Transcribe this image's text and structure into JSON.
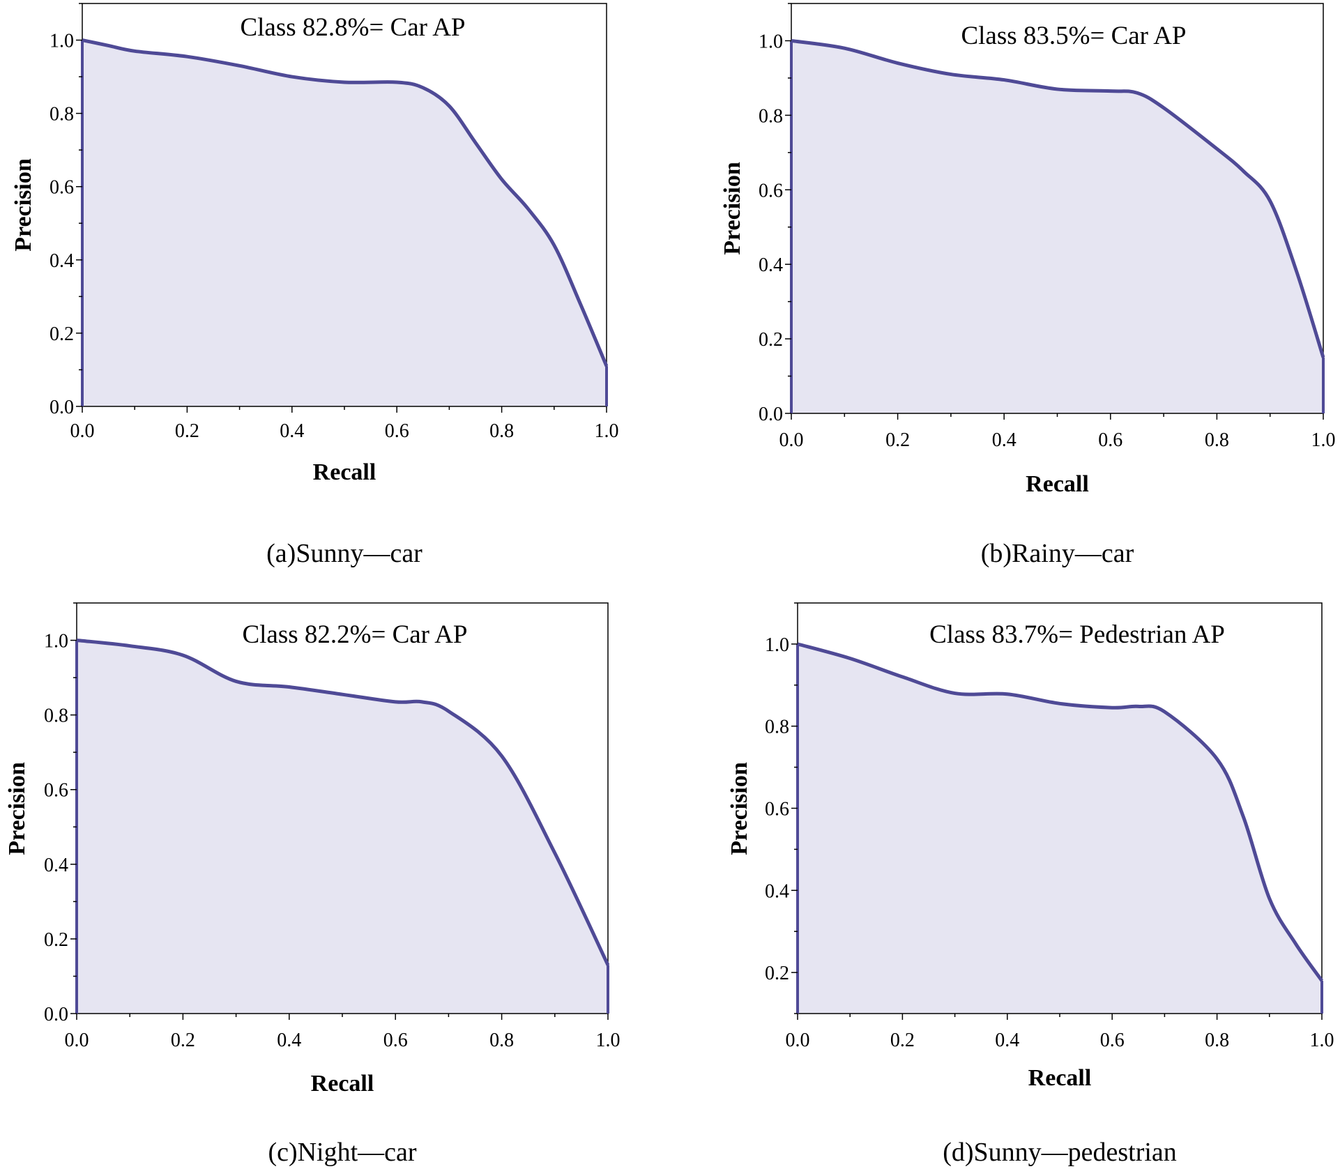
{
  "colors": {
    "line": "#4f4a96",
    "fill": "#e6e5f2",
    "axis": "#000000"
  },
  "chart_data": [
    {
      "type": "area",
      "title": "Class 82.8%= Car AP",
      "caption": "(a)Sunny—car",
      "xlabel": "Recall",
      "ylabel": "Precision",
      "xlim": [
        0,
        1.0
      ],
      "ylim": [
        0,
        1.1
      ],
      "xticks": [
        "0.0",
        "0.2",
        "0.4",
        "0.6",
        "0.8",
        "1.0"
      ],
      "yticks": [
        "0.0",
        "0.2",
        "0.4",
        "0.6",
        "0.8",
        "1.0"
      ],
      "x": [
        0,
        0.05,
        0.1,
        0.2,
        0.3,
        0.4,
        0.5,
        0.6,
        0.65,
        0.7,
        0.75,
        0.8,
        0.85,
        0.9,
        0.95,
        1.0
      ],
      "y": [
        1.0,
        0.985,
        0.97,
        0.955,
        0.93,
        0.9,
        0.885,
        0.885,
        0.87,
        0.82,
        0.72,
        0.62,
        0.54,
        0.44,
        0.28,
        0.11
      ]
    },
    {
      "type": "area",
      "title": "Class 83.5%= Car AP",
      "caption": "(b)Rainy—car",
      "xlabel": "Recall",
      "ylabel": "Precision",
      "xlim": [
        0,
        1.0
      ],
      "ylim": [
        0,
        1.1
      ],
      "xticks": [
        "0.0",
        "0.2",
        "0.4",
        "0.6",
        "0.8",
        "1.0"
      ],
      "yticks": [
        "0.0",
        "0.2",
        "0.4",
        "0.6",
        "0.8",
        "1.0"
      ],
      "x": [
        0,
        0.1,
        0.2,
        0.3,
        0.4,
        0.5,
        0.6,
        0.65,
        0.7,
        0.8,
        0.85,
        0.9,
        0.95,
        1.0
      ],
      "y": [
        1.0,
        0.98,
        0.94,
        0.91,
        0.895,
        0.87,
        0.865,
        0.86,
        0.82,
        0.71,
        0.65,
        0.57,
        0.38,
        0.15
      ]
    },
    {
      "type": "area",
      "title": "Class 82.2%= Car AP",
      "caption": "(c)Night—car",
      "xlabel": "Recall",
      "ylabel": "Precision",
      "xlim": [
        0,
        1.0
      ],
      "ylim": [
        0,
        1.1
      ],
      "xticks": [
        "0.0",
        "0.2",
        "0.4",
        "0.6",
        "0.8",
        "1.0"
      ],
      "yticks": [
        "0.0",
        "0.2",
        "0.4",
        "0.6",
        "0.8",
        "1.0"
      ],
      "x": [
        0,
        0.1,
        0.2,
        0.3,
        0.4,
        0.5,
        0.6,
        0.65,
        0.7,
        0.8,
        0.9,
        1.0
      ],
      "y": [
        1.0,
        0.985,
        0.96,
        0.89,
        0.875,
        0.855,
        0.835,
        0.835,
        0.81,
        0.69,
        0.43,
        0.13
      ]
    },
    {
      "type": "area",
      "title": "Class 83.7%= Pedestrian AP",
      "caption": "(d)Sunny—pedestrian",
      "xlabel": "Recall",
      "ylabel": "Precision",
      "xlim": [
        0,
        1.0
      ],
      "ylim": [
        0.1,
        1.1
      ],
      "xticks": [
        "0.0",
        "0.2",
        "0.4",
        "0.6",
        "0.8",
        "1.0"
      ],
      "yticks": [
        "0.2",
        "0.4",
        "0.6",
        "0.8",
        "1.0"
      ],
      "x": [
        0,
        0.1,
        0.2,
        0.3,
        0.4,
        0.5,
        0.6,
        0.65,
        0.7,
        0.8,
        0.85,
        0.9,
        0.95,
        1.0
      ],
      "y": [
        1.0,
        0.965,
        0.92,
        0.88,
        0.878,
        0.855,
        0.845,
        0.848,
        0.835,
        0.72,
        0.58,
        0.38,
        0.27,
        0.18
      ]
    }
  ]
}
